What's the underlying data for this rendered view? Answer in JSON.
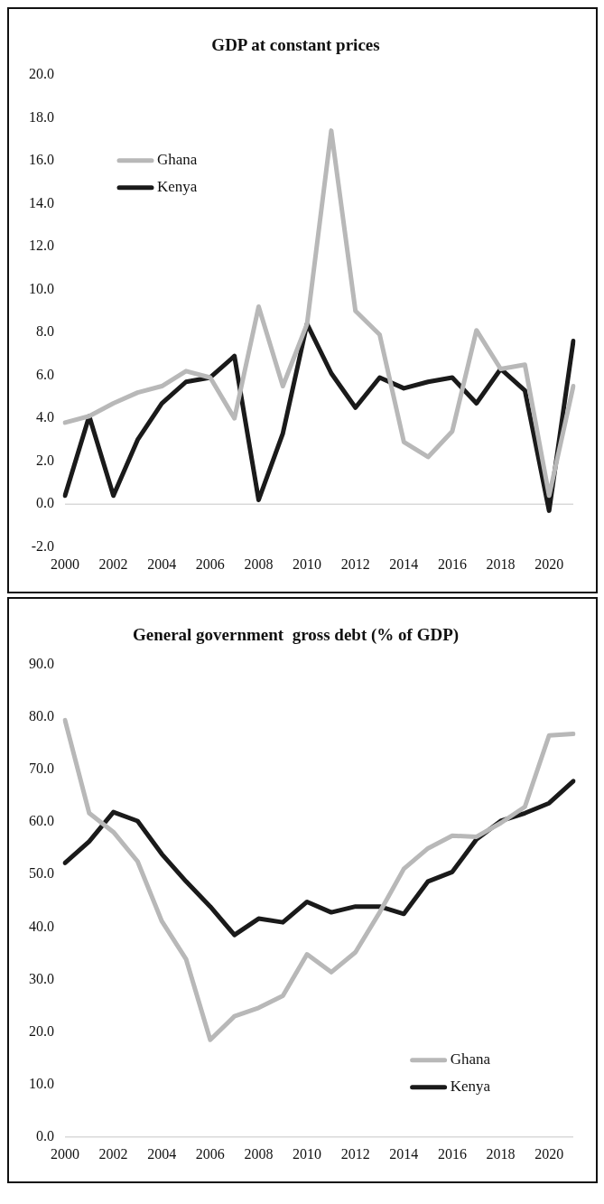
{
  "chart_data": [
    {
      "type": "line",
      "title": "GDP at constant prices",
      "categories": [
        "2000",
        null,
        "2002",
        null,
        "2004",
        null,
        "2006",
        null,
        "2008",
        null,
        "2010",
        null,
        "2012",
        null,
        "2014",
        null,
        "2016",
        null,
        "2018",
        null,
        "2020",
        null
      ],
      "series": [
        {
          "name": "Ghana",
          "color": "#b8b8b8",
          "values": [
            3.8,
            4.1,
            4.7,
            5.2,
            5.5,
            6.2,
            5.9,
            4.0,
            9.2,
            5.5,
            8.4,
            17.4,
            9.0,
            7.9,
            2.9,
            2.2,
            3.4,
            8.1,
            6.3,
            6.5,
            0.4,
            5.5
          ]
        },
        {
          "name": "Kenya",
          "color": "#1a1a1a",
          "values": [
            0.4,
            4.1,
            0.4,
            3.0,
            4.7,
            5.7,
            5.9,
            6.9,
            0.2,
            3.3,
            8.4,
            6.1,
            4.5,
            5.9,
            5.4,
            5.7,
            5.9,
            4.7,
            6.3,
            5.3,
            -0.3,
            7.6
          ]
        }
      ],
      "ylim": [
        -2,
        20
      ],
      "yticks": [
        {
          "value": -2,
          "label": "-2.0"
        },
        {
          "value": 0,
          "label": "0.0"
        },
        {
          "value": 2,
          "label": "2.0"
        },
        {
          "value": 4,
          "label": "4.0"
        },
        {
          "value": 6,
          "label": "6.0"
        },
        {
          "value": 8,
          "label": "8.0"
        },
        {
          "value": 10,
          "label": "10.0"
        },
        {
          "value": 12,
          "label": "12.0"
        },
        {
          "value": 14,
          "label": "14.0"
        },
        {
          "value": 16,
          "label": "16.0"
        },
        {
          "value": 18,
          "label": "18.0"
        },
        {
          "value": 20,
          "label": "20.0"
        }
      ],
      "legend": "top left",
      "marker": "none"
    },
    {
      "type": "line",
      "title": "General government  gross debt (% of GDP)",
      "categories": [
        "2000",
        null,
        "2002",
        null,
        "2004",
        null,
        "2006",
        null,
        "2008",
        null,
        "2010",
        null,
        "2012",
        null,
        "2014",
        null,
        "2016",
        null,
        "2018",
        null,
        "2020",
        null
      ],
      "series": [
        {
          "name": "Ghana",
          "color": "#b8b8b8",
          "values": [
            79.4,
            61.7,
            58.1,
            52.5,
            41.1,
            33.9,
            18.5,
            23.0,
            24.6,
            26.9,
            34.8,
            31.4,
            35.2,
            42.8,
            51.1,
            55.0,
            57.4,
            57.2,
            59.8,
            62.9,
            76.5,
            76.8
          ]
        },
        {
          "name": "Kenya",
          "color": "#1a1a1a",
          "values": [
            52.2,
            56.3,
            61.9,
            60.2,
            53.9,
            48.7,
            43.9,
            38.5,
            41.6,
            40.9,
            44.8,
            42.8,
            43.9,
            43.9,
            42.5,
            48.7,
            50.5,
            56.7,
            60.2,
            61.7,
            63.6,
            67.8
          ]
        }
      ],
      "ylim": [
        0,
        90
      ],
      "yticks": [
        {
          "value": 0,
          "label": "0.0"
        },
        {
          "value": 10,
          "label": "10.0"
        },
        {
          "value": 20,
          "label": "20.0"
        },
        {
          "value": 30,
          "label": "30.0"
        },
        {
          "value": 40,
          "label": "40.0"
        },
        {
          "value": 50,
          "label": "50.0"
        },
        {
          "value": 60,
          "label": "60.0"
        },
        {
          "value": 70,
          "label": "70.0"
        },
        {
          "value": 80,
          "label": "80.0"
        },
        {
          "value": 90,
          "label": "90.0"
        }
      ],
      "legend": "bottom right",
      "marker": "none"
    }
  ]
}
